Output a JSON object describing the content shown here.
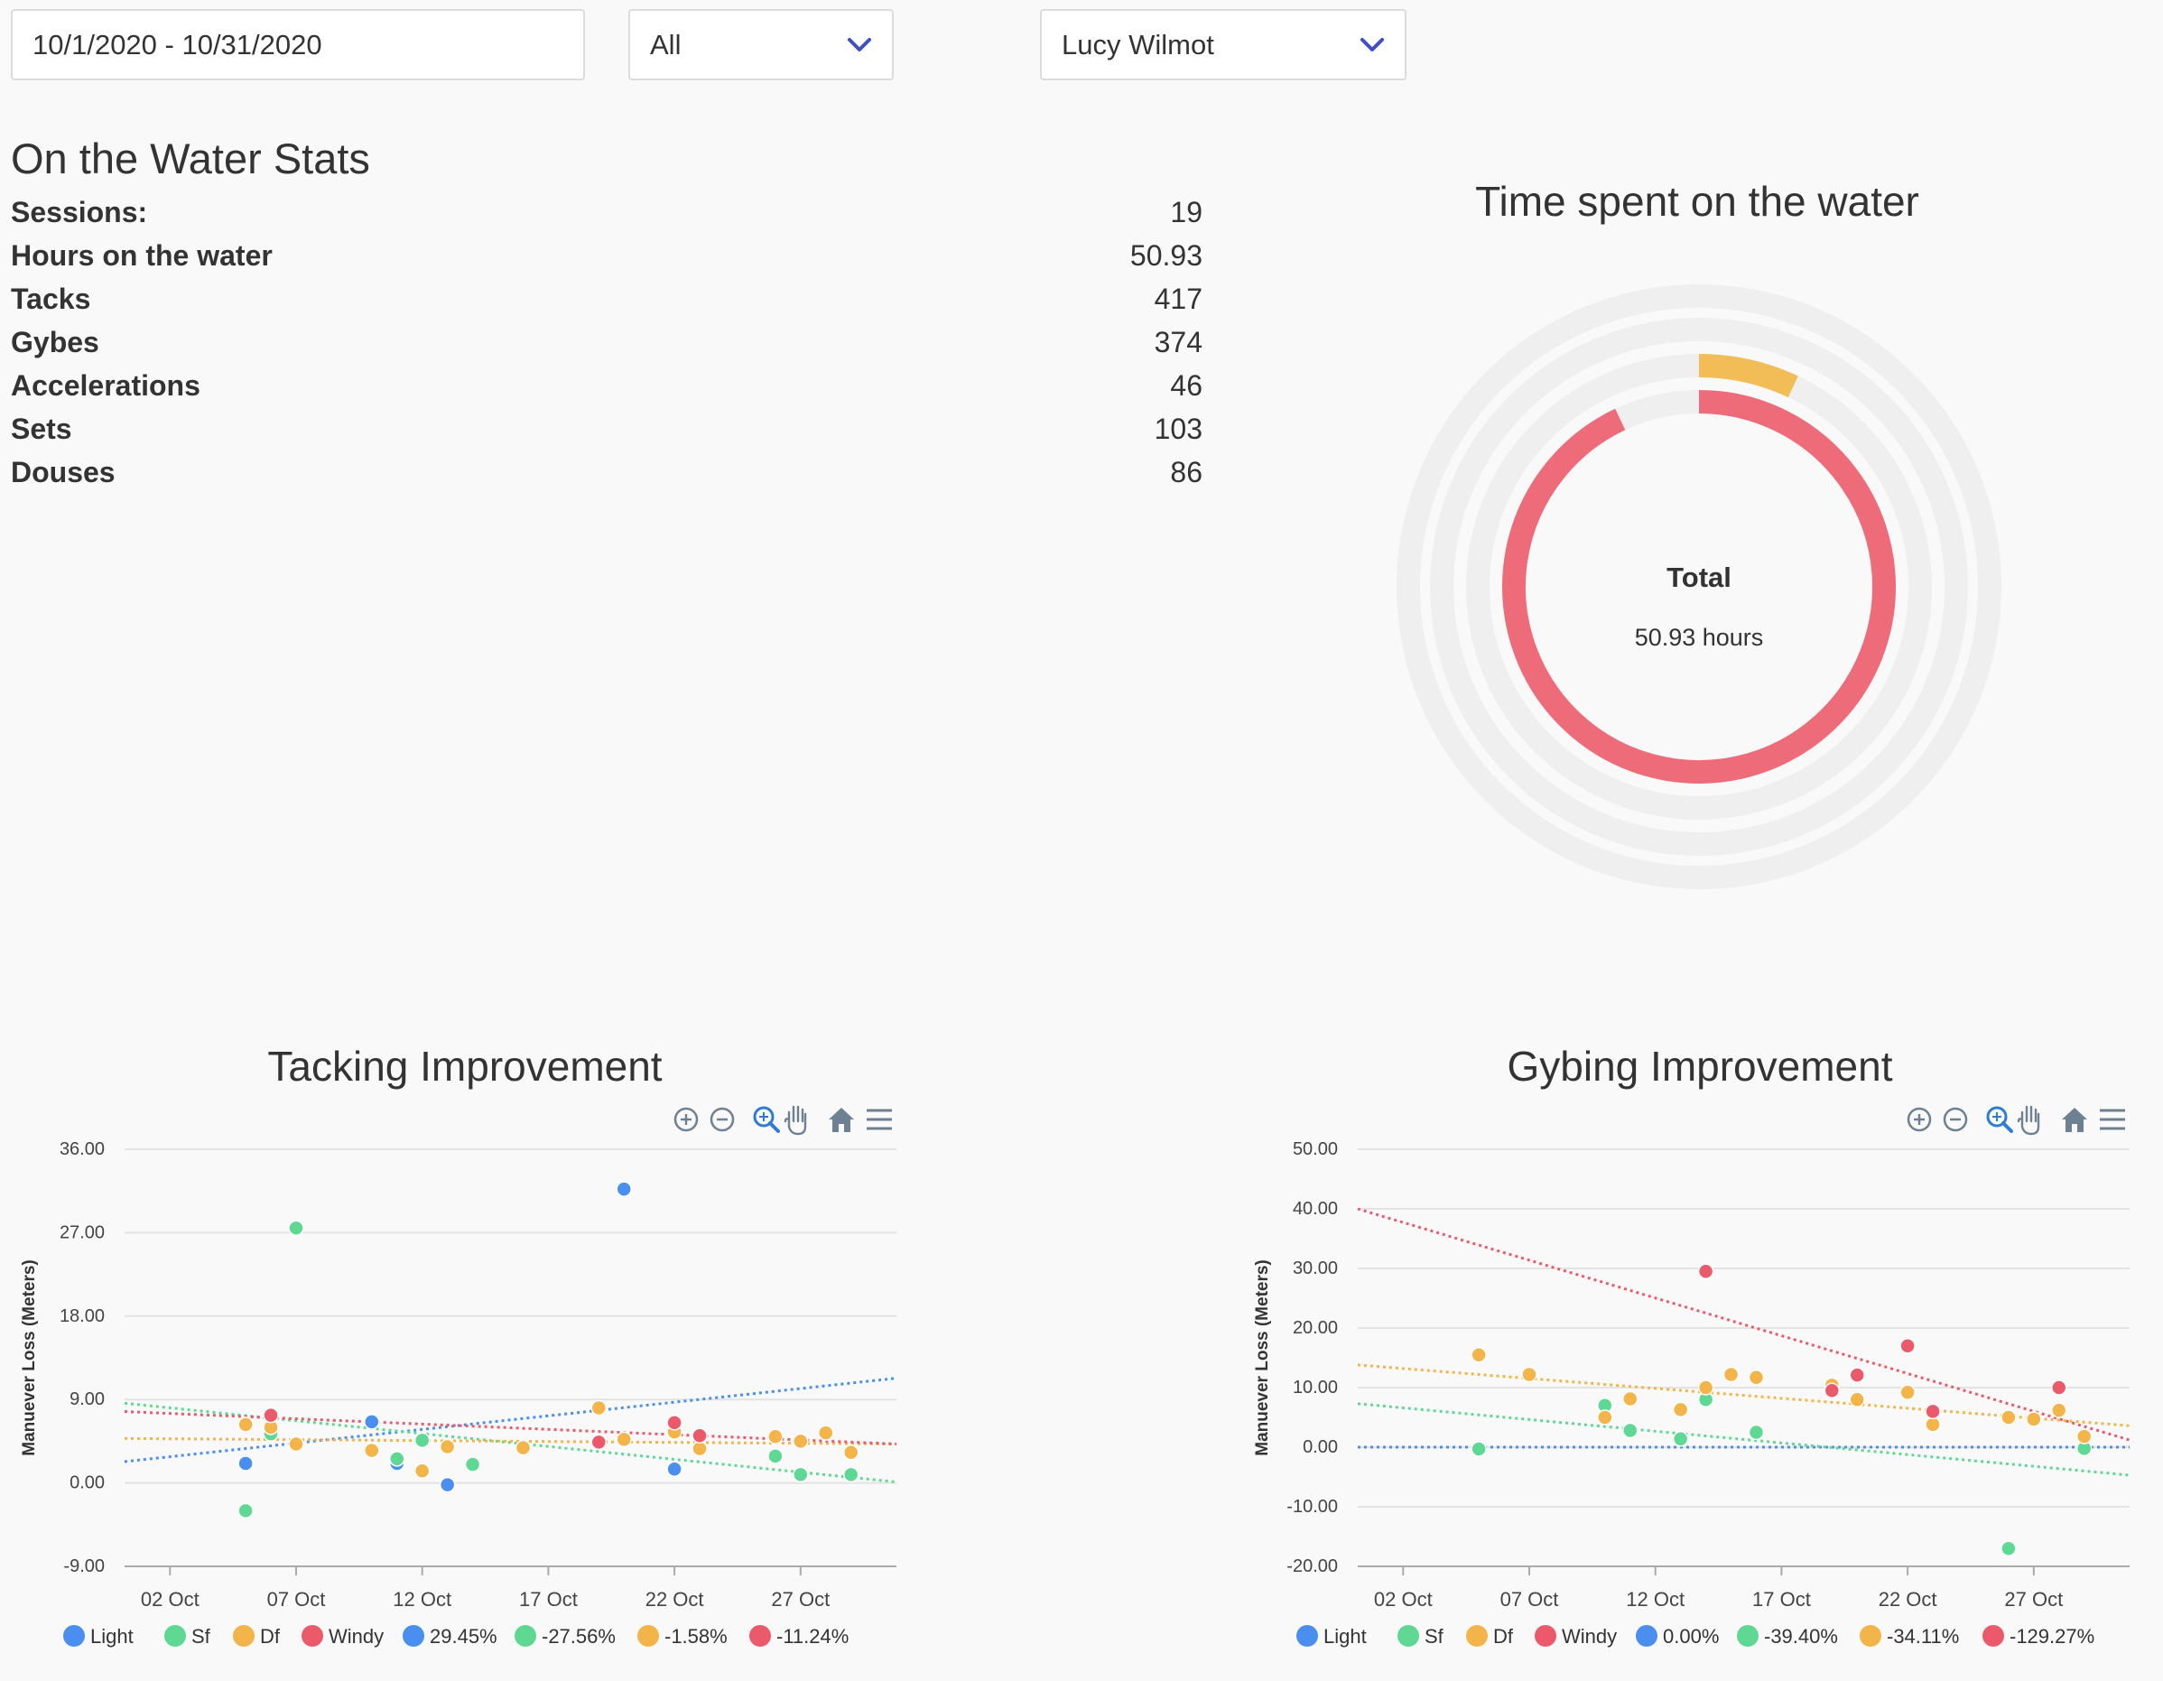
{
  "filters": {
    "date_range": "10/1/2020 - 10/31/2020",
    "category": "All",
    "athlete": "Lucy Wilmot"
  },
  "stats": {
    "title": "On the Water Stats",
    "rows": [
      {
        "label": "Sessions:",
        "value": "19"
      },
      {
        "label": "Hours on the water",
        "value": "50.93"
      },
      {
        "label": "Tacks",
        "value": "417"
      },
      {
        "label": "Gybes",
        "value": "374"
      },
      {
        "label": "Accelerations",
        "value": "46"
      },
      {
        "label": "Sets",
        "value": "103"
      },
      {
        "label": "Douses",
        "value": "86"
      }
    ]
  },
  "colors": {
    "light": "#4a8ef0",
    "sf": "#5fd894",
    "df": "#f3b54a",
    "windy": "#ea5a6b",
    "ring_total": "#ee6b79",
    "ring_df": "#f2bd57",
    "ring_track": "#efefef"
  },
  "toolbar_icons": [
    "zoom-in-icon",
    "zoom-out-icon",
    "selection-zoom-icon",
    "pan-icon",
    "reset-home-icon",
    "menu-icon"
  ],
  "chart_data": [
    {
      "type": "radialBar",
      "title": "Time spent on the water",
      "center_label": "Total",
      "center_value": "50.93 hours",
      "series": [
        {
          "name": "Total",
          "fraction": 0.93
        },
        {
          "name": "Df",
          "fraction": 0.07
        },
        {
          "name": "Sf",
          "fraction": 0
        },
        {
          "name": "Light",
          "fraction": 0
        }
      ]
    },
    {
      "type": "scatter",
      "title": "Tacking Improvement",
      "ylabel": "Manuever Loss (Meters)",
      "ylim": [
        -9,
        36
      ],
      "yticks": [
        "36.00",
        "27.00",
        "18.00",
        "9.00",
        "0.00",
        "-9.00"
      ],
      "xlim": [
        0.2,
        30.8
      ],
      "xticks": [
        {
          "x": 2,
          "label": "02 Oct"
        },
        {
          "x": 7,
          "label": "07 Oct"
        },
        {
          "x": 12,
          "label": "12 Oct"
        },
        {
          "x": 17,
          "label": "17 Oct"
        },
        {
          "x": 22,
          "label": "22 Oct"
        },
        {
          "x": 27,
          "label": "27 Oct"
        }
      ],
      "series": [
        {
          "name": "Light",
          "color": "#4a8ef0",
          "points": [
            [
              5,
              2.1
            ],
            [
              10,
              6.6
            ],
            [
              11,
              2.1
            ],
            [
              13,
              -0.2
            ],
            [
              20,
              31.7
            ],
            [
              22,
              1.5
            ]
          ],
          "trend": [
            2.3,
            11.3
          ],
          "trend_label": "29.45%"
        },
        {
          "name": "Sf",
          "color": "#5fd894",
          "points": [
            [
              5,
              -3
            ],
            [
              6,
              5.3
            ],
            [
              7,
              27.5
            ],
            [
              11,
              2.6
            ],
            [
              12,
              4.6
            ],
            [
              14,
              2
            ],
            [
              19,
              4.4
            ],
            [
              26,
              2.9
            ],
            [
              27,
              0.9
            ],
            [
              29,
              0.9
            ]
          ],
          "trend": [
            8.6,
            0.1
          ],
          "trend_label": "-27.56%"
        },
        {
          "name": "Df",
          "color": "#f3b54a",
          "points": [
            [
              5,
              6.3
            ],
            [
              6,
              6
            ],
            [
              7,
              4.2
            ],
            [
              10,
              3.5
            ],
            [
              12,
              1.3
            ],
            [
              13,
              3.9
            ],
            [
              16,
              3.8
            ],
            [
              19,
              8.1
            ],
            [
              20,
              4.7
            ],
            [
              22,
              5.5
            ],
            [
              23,
              3.7
            ],
            [
              26,
              5
            ],
            [
              27,
              4.5
            ],
            [
              28,
              5.4
            ],
            [
              29,
              3.3
            ]
          ],
          "trend": [
            4.8,
            4.2
          ],
          "trend_label": "-1.58%"
        },
        {
          "name": "Windy",
          "color": "#ea5a6b",
          "points": [
            [
              6,
              7.3
            ],
            [
              19,
              4.4
            ],
            [
              22,
              6.5
            ],
            [
              23,
              5.1
            ]
          ],
          "trend": [
            7.7,
            4.2
          ],
          "trend_label": "-11.24%"
        }
      ]
    },
    {
      "type": "scatter",
      "title": "Gybing Improvement",
      "ylabel": "Manuever Loss (Meters)",
      "ylim": [
        -20,
        50
      ],
      "yticks": [
        "50.00",
        "40.00",
        "30.00",
        "20.00",
        "10.00",
        "0.00",
        "-10.00",
        "-20.00"
      ],
      "xlim": [
        0.2,
        30.8
      ],
      "xticks": [
        {
          "x": 2,
          "label": "02 Oct"
        },
        {
          "x": 7,
          "label": "07 Oct"
        },
        {
          "x": 12,
          "label": "12 Oct"
        },
        {
          "x": 17,
          "label": "17 Oct"
        },
        {
          "x": 22,
          "label": "22 Oct"
        },
        {
          "x": 27,
          "label": "27 Oct"
        }
      ],
      "series": [
        {
          "name": "Light",
          "color": "#4a8ef0",
          "points": [],
          "trend": [
            0,
            0
          ],
          "trend_label": "0.00%"
        },
        {
          "name": "Sf",
          "color": "#5fd894",
          "points": [
            [
              5,
              -0.3
            ],
            [
              10,
              7
            ],
            [
              11,
              2.8
            ],
            [
              13,
              1.4
            ],
            [
              14,
              8
            ],
            [
              16,
              2.5
            ],
            [
              26,
              -17
            ],
            [
              29,
              -0.2
            ]
          ],
          "trend": [
            7.3,
            -4.7
          ],
          "trend_label": "-39.40%"
        },
        {
          "name": "Df",
          "color": "#f3b54a",
          "points": [
            [
              5,
              15.5
            ],
            [
              7,
              12.2
            ],
            [
              10,
              5
            ],
            [
              11,
              8.1
            ],
            [
              13,
              6.3
            ],
            [
              14,
              10
            ],
            [
              15,
              12.2
            ],
            [
              16,
              11.7
            ],
            [
              19,
              10.4
            ],
            [
              20,
              8
            ],
            [
              22,
              9.2
            ],
            [
              23,
              3.8
            ],
            [
              26,
              5
            ],
            [
              27,
              4.7
            ],
            [
              28,
              6.2
            ],
            [
              29,
              1.8
            ]
          ],
          "trend": [
            13.8,
            3.6
          ],
          "trend_label": "-34.11%"
        },
        {
          "name": "Windy",
          "color": "#ea5a6b",
          "points": [
            [
              14,
              29.5
            ],
            [
              19,
              9.5
            ],
            [
              20,
              12.1
            ],
            [
              22,
              17
            ],
            [
              23,
              6
            ],
            [
              28,
              10
            ]
          ],
          "trend": [
            40,
            1.2
          ],
          "trend_label": "-129.27%"
        }
      ]
    }
  ]
}
